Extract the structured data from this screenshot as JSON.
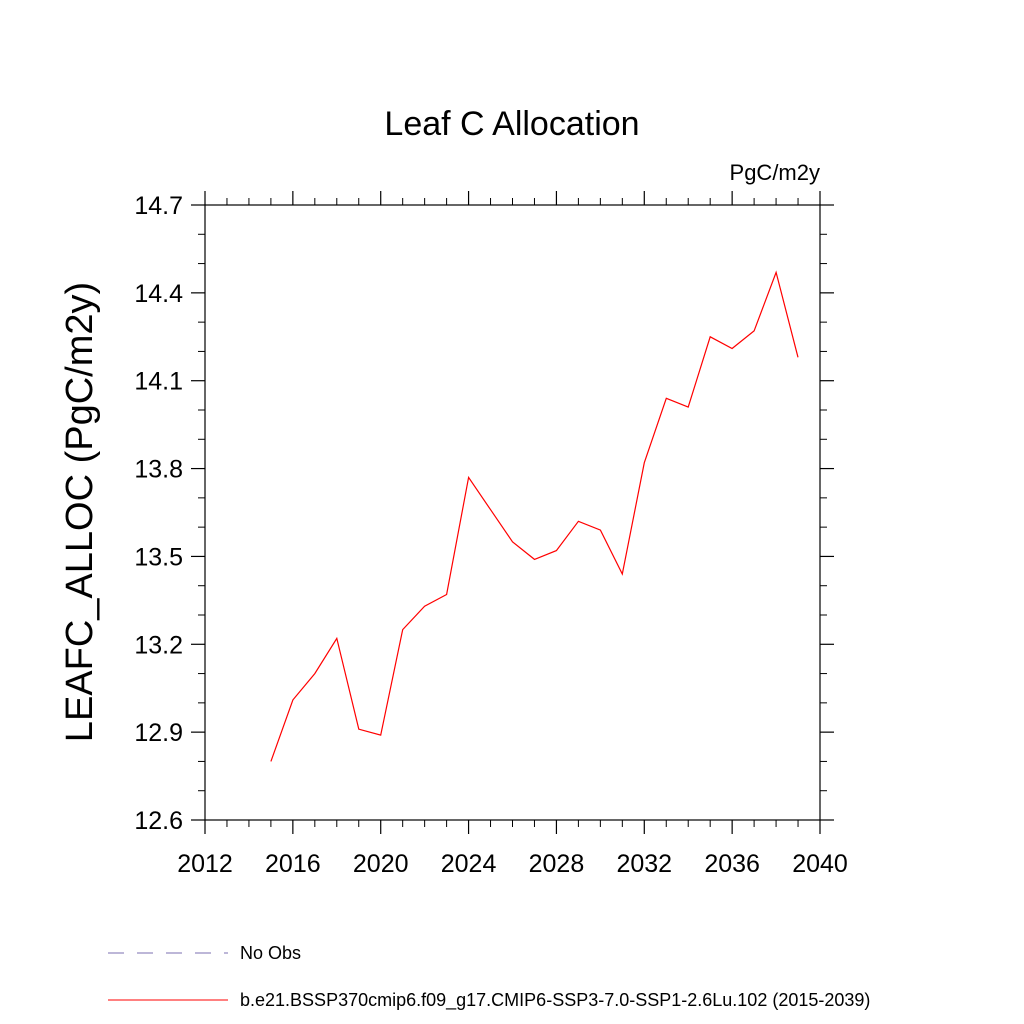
{
  "chart_data": {
    "type": "line",
    "title": "Leaf C Allocation",
    "units_label": "PgC/m2y",
    "ylabel": "LEAFC_ALLOC  (PgC/m2y)",
    "xlabel": "",
    "xlim": [
      2012,
      2040
    ],
    "ylim": [
      12.6,
      14.7
    ],
    "x_ticks": [
      2012,
      2016,
      2020,
      2024,
      2028,
      2032,
      2036,
      2040
    ],
    "x_tick_labels": [
      "2012",
      "2016",
      "2020",
      "2024",
      "2028",
      "2032",
      "2036",
      "2040"
    ],
    "y_ticks": [
      12.6,
      12.9,
      13.2,
      13.5,
      13.8,
      14.1,
      14.4,
      14.7
    ],
    "y_tick_labels": [
      "12.6",
      "12.9",
      "13.2",
      "13.5",
      "13.8",
      "14.1",
      "14.4",
      "14.7"
    ],
    "grid": false,
    "legend_position": "bottom",
    "series": [
      {
        "name": "b.e21.BSSP370cmip6.f09_g17.CMIP6-SSP3-7.0-SSP1-2.6Lu.102 (2015-2039)",
        "color": "#ff0000",
        "style": "solid",
        "x": [
          2015,
          2016,
          2017,
          2018,
          2019,
          2020,
          2021,
          2022,
          2023,
          2024,
          2025,
          2026,
          2027,
          2028,
          2029,
          2030,
          2031,
          2032,
          2033,
          2034,
          2035,
          2036,
          2037,
          2038,
          2039
        ],
        "y": [
          12.8,
          13.01,
          13.1,
          13.22,
          12.91,
          12.89,
          13.25,
          13.33,
          13.37,
          13.77,
          13.66,
          13.55,
          13.49,
          13.52,
          13.62,
          13.59,
          13.44,
          13.82,
          14.04,
          14.01,
          14.25,
          14.21,
          14.27,
          14.47,
          14.18
        ]
      }
    ],
    "legend": [
      {
        "label": "No Obs",
        "color": "#7b6fb0",
        "style": "dashed"
      },
      {
        "label": "b.e21.BSSP370cmip6.f09_g17.CMIP6-SSP3-7.0-SSP1-2.6Lu.102 (2015-2039)",
        "color": "#ff0000",
        "style": "solid"
      }
    ]
  }
}
